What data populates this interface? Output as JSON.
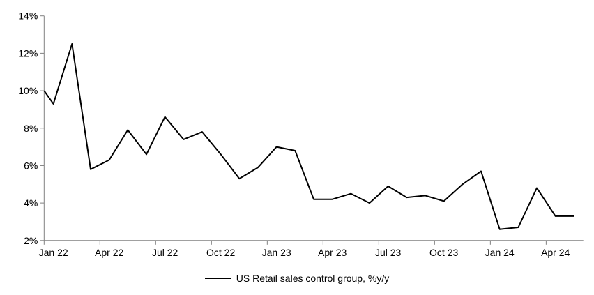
{
  "chart_data": {
    "type": "line",
    "title": "",
    "legend": "US Retail sales control group, %y/y",
    "legend_position": "bottom",
    "grid": false,
    "y_axis": {
      "min": 2,
      "max": 14,
      "tick_step": 2,
      "tick_labels": [
        "2%",
        "4%",
        "6%",
        "8%",
        "10%",
        "12%",
        "14%"
      ]
    },
    "x_axis": {
      "tick_labels": [
        "Jan 22",
        "Apr 22",
        "Jul 22",
        "Oct 22",
        "Jan 23",
        "Apr 23",
        "Jul 23",
        "Oct 23",
        "Jan 24",
        "Apr 24"
      ],
      "tick_interval_months": 3
    },
    "series": [
      {
        "name": "US Retail sales control group, %y/y",
        "x": [
          "Jan 22",
          "Feb 22",
          "Mar 22",
          "Apr 22",
          "May 22",
          "Jun 22",
          "Jul 22",
          "Aug 22",
          "Sep 22",
          "Oct 22",
          "Nov 22",
          "Dec 22",
          "Jan 23",
          "Feb 23",
          "Mar 23",
          "Apr 23",
          "May 23",
          "Jun 23",
          "Jul 23",
          "Aug 23",
          "Sep 23",
          "Oct 23",
          "Nov 23",
          "Dec 23",
          "Jan 24",
          "Feb 24",
          "Mar 24",
          "Apr 24",
          "May 24"
        ],
        "values": [
          9.3,
          12.5,
          5.8,
          6.3,
          7.9,
          6.6,
          8.6,
          7.4,
          7.8,
          6.6,
          5.3,
          5.9,
          7.0,
          6.8,
          4.2,
          4.2,
          4.5,
          4.0,
          4.9,
          4.3,
          4.4,
          4.1,
          5.0,
          5.7,
          2.6,
          2.7,
          4.8,
          3.3,
          3.3
        ],
        "value_at_left_axis_clip": 10.0
      }
    ],
    "colors": {
      "line": "#000000",
      "axis": "#808080",
      "text": "#000000",
      "background": "#ffffff"
    }
  }
}
